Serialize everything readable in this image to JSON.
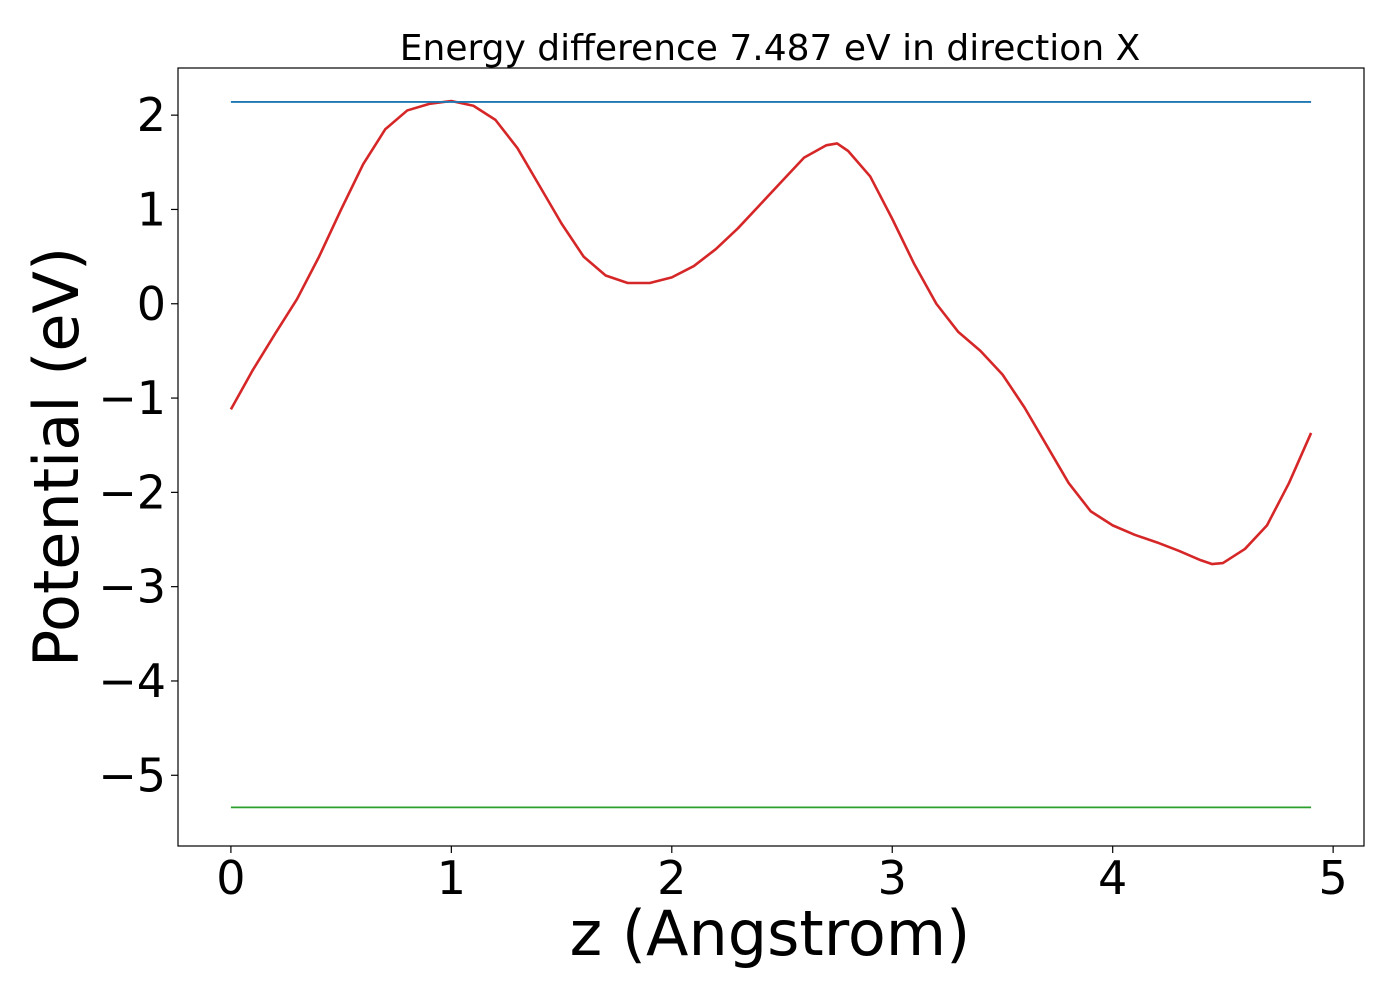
{
  "chart_data": {
    "type": "line",
    "title": "Energy difference 7.487 eV in direction X",
    "xlabel": "z (Angstrom)",
    "ylabel": "Potential (eV)",
    "xlim": [
      -0.24,
      5.14
    ],
    "ylim": [
      -5.75,
      2.5
    ],
    "x_ticks": [
      0,
      1,
      2,
      3,
      4,
      5
    ],
    "x_tick_labels": [
      "0",
      "1",
      "2",
      "3",
      "4",
      "5"
    ],
    "y_ticks": [
      2,
      1,
      0,
      -1,
      -2,
      -3,
      -4,
      -5
    ],
    "y_tick_labels": [
      "2",
      "1",
      "0",
      "−1",
      "−2",
      "−3",
      "−4",
      "−5"
    ],
    "grid": false,
    "series": [
      {
        "color": "#d62728",
        "x": [
          0.0,
          0.1,
          0.2,
          0.3,
          0.4,
          0.5,
          0.6,
          0.7,
          0.8,
          0.9,
          1.0,
          1.1,
          1.2,
          1.3,
          1.4,
          1.5,
          1.6,
          1.7,
          1.8,
          1.9,
          2.0,
          2.1,
          2.2,
          2.3,
          2.4,
          2.5,
          2.6,
          2.7,
          2.75,
          2.8,
          2.9,
          3.0,
          3.1,
          3.2,
          3.3,
          3.4,
          3.5,
          3.6,
          3.7,
          3.8,
          3.9,
          4.0,
          4.1,
          4.2,
          4.3,
          4.4,
          4.45,
          4.5,
          4.6,
          4.7,
          4.8,
          4.9
        ],
        "values": [
          -1.12,
          -0.7,
          -0.32,
          0.05,
          0.5,
          1.0,
          1.48,
          1.85,
          2.05,
          2.12,
          2.15,
          2.1,
          1.95,
          1.65,
          1.25,
          0.85,
          0.5,
          0.3,
          0.22,
          0.22,
          0.28,
          0.4,
          0.58,
          0.8,
          1.05,
          1.3,
          1.55,
          1.68,
          1.7,
          1.62,
          1.35,
          0.9,
          0.42,
          0.0,
          -0.3,
          -0.5,
          -0.75,
          -1.1,
          -1.5,
          -1.9,
          -2.2,
          -2.35,
          -2.45,
          -2.53,
          -2.62,
          -2.72,
          -2.76,
          -2.75,
          -2.6,
          -2.35,
          -1.9,
          -1.37
        ]
      },
      {
        "color": "#1f77b4",
        "x": [
          0.0,
          4.9
        ],
        "values": [
          2.14,
          2.14
        ]
      },
      {
        "color": "#2ca02c",
        "x": [
          0.0,
          4.9
        ],
        "values": [
          -5.34,
          -5.34
        ]
      }
    ]
  }
}
